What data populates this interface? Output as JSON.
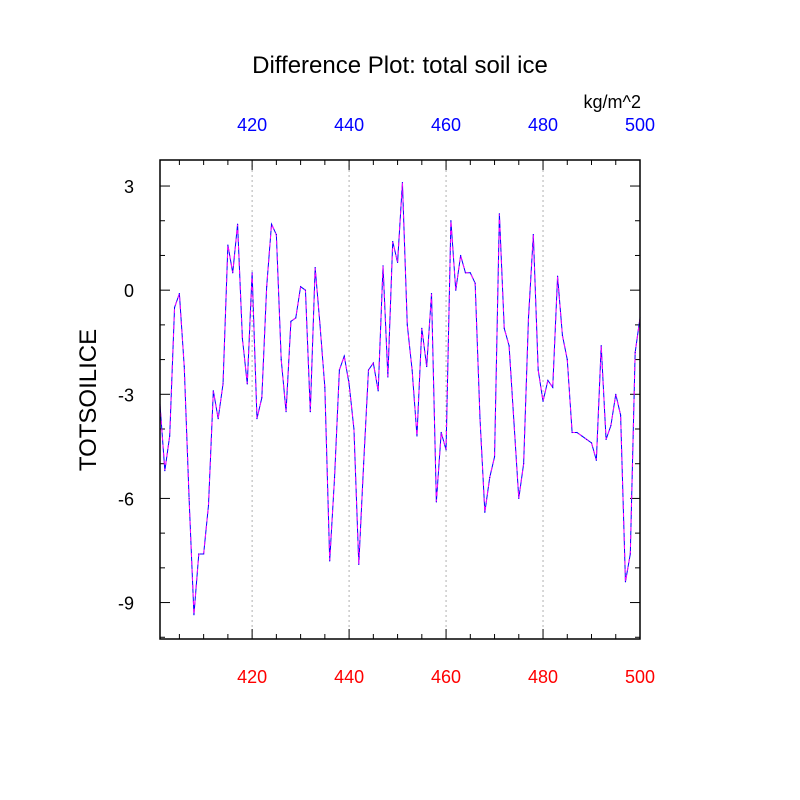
{
  "chart_data": {
    "type": "line",
    "title": "Difference Plot: total soil ice",
    "units_label": "kg/m^2",
    "ylabel": "TOTSOILICE",
    "xlabel": "",
    "xlim": [
      401,
      500
    ],
    "ylim": [
      -10.05,
      3.75
    ],
    "x_ticks": [
      420,
      440,
      460,
      480,
      500
    ],
    "y_ticks": [
      3,
      0,
      -3,
      -6,
      -9
    ],
    "x_tick_labels": [
      "420",
      "440",
      "460",
      "480",
      "500"
    ],
    "y_tick_labels": [
      "3",
      "0",
      "-3",
      "-6",
      "-9"
    ],
    "grid": "vertical dotted at major x ticks",
    "colors": {
      "bottom_axis": "#ff0000",
      "top_axis": "#0000ff",
      "series_line_a": "#0000ff",
      "series_line_b": "#ff00ff",
      "grid": "#b0b0b0",
      "axes": "#000000"
    },
    "series": [
      {
        "name": "total soil ice difference",
        "x": [
          401,
          402,
          403,
          404,
          405,
          406,
          407,
          408,
          409,
          410,
          411,
          412,
          413,
          414,
          415,
          416,
          417,
          418,
          419,
          420,
          421,
          422,
          423,
          424,
          425,
          426,
          427,
          428,
          429,
          430,
          431,
          432,
          433,
          434,
          435,
          436,
          437,
          438,
          439,
          440,
          441,
          442,
          443,
          444,
          445,
          446,
          447,
          448,
          449,
          450,
          451,
          452,
          453,
          454,
          455,
          456,
          457,
          458,
          459,
          460,
          461,
          462,
          463,
          464,
          465,
          466,
          467,
          468,
          469,
          470,
          471,
          472,
          473,
          474,
          475,
          476,
          477,
          478,
          479,
          480,
          481,
          482,
          483,
          484,
          485,
          486,
          487,
          488,
          489,
          490,
          491,
          492,
          493,
          494,
          495,
          496,
          497,
          498,
          499,
          500
        ],
        "values": [
          -3.3,
          -5.2,
          -4.2,
          -0.5,
          -0.1,
          -2.2,
          -6.0,
          -9.35,
          -7.6,
          -7.6,
          -6.2,
          -2.9,
          -3.7,
          -2.7,
          1.3,
          0.5,
          1.9,
          -1.4,
          -2.7,
          0.5,
          -3.7,
          -3.1,
          0.1,
          1.9,
          1.6,
          -2.0,
          -3.5,
          -0.9,
          -0.8,
          0.1,
          0.0,
          -3.5,
          0.65,
          -1.0,
          -2.8,
          -7.8,
          -5.4,
          -2.3,
          -1.9,
          -2.7,
          -4.0,
          -7.9,
          -5.0,
          -2.3,
          -2.1,
          -2.9,
          0.7,
          -2.5,
          1.4,
          0.8,
          3.1,
          -1.0,
          -2.3,
          -4.2,
          -1.1,
          -2.2,
          -0.1,
          -6.1,
          -4.1,
          -4.6,
          2.0,
          0.0,
          1.0,
          0.5,
          0.5,
          0.2,
          -3.7,
          -6.4,
          -5.4,
          -4.8,
          2.2,
          -1.1,
          -1.6,
          -3.8,
          -6.0,
          -5.0,
          -0.8,
          1.6,
          -2.3,
          -3.2,
          -2.6,
          -2.8,
          0.4,
          -1.3,
          -2.0,
          -4.1,
          -4.1,
          -4.2,
          -4.3,
          -4.4,
          -4.9,
          -1.6,
          -4.3,
          -3.9,
          -3.0,
          -3.6,
          -8.4,
          -7.6,
          -1.8,
          -0.8
        ]
      }
    ]
  }
}
